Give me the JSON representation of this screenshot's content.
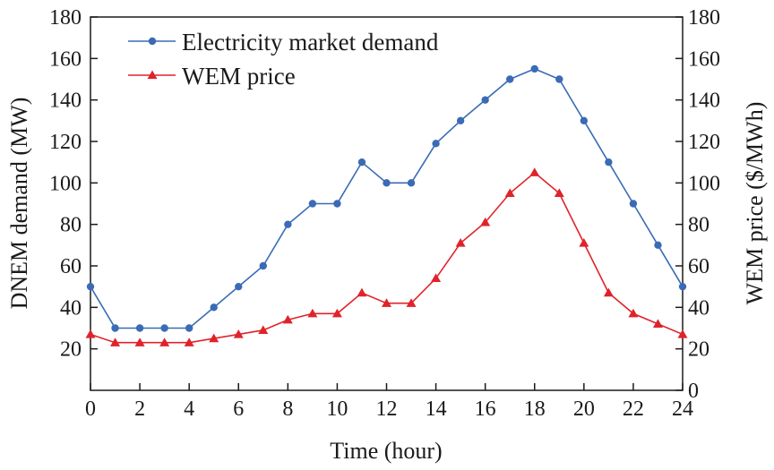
{
  "chart_data": {
    "type": "line",
    "xlabel": "Time (hour)",
    "ylabel_left": "DNEM demand (MW)",
    "ylabel_right": "WEM price ($/MWh)",
    "x_ticks": [
      0,
      2,
      4,
      6,
      8,
      10,
      12,
      14,
      16,
      18,
      20,
      22,
      24
    ],
    "xlim": [
      0,
      24
    ],
    "y_left_ticks": [
      20,
      40,
      60,
      80,
      100,
      120,
      140,
      160,
      180
    ],
    "y_right_ticks": [
      0,
      20,
      40,
      60,
      80,
      100,
      120,
      140,
      160,
      180
    ],
    "ylim": [
      0,
      180
    ],
    "grid": false,
    "legend_position": "top-left",
    "x": [
      0,
      1,
      2,
      3,
      4,
      5,
      6,
      7,
      8,
      9,
      10,
      11,
      12,
      13,
      14,
      15,
      16,
      17,
      18,
      19,
      20,
      21,
      22,
      23,
      24
    ],
    "series": [
      {
        "name": "Electricity market demand",
        "axis": "left",
        "marker": "circle",
        "color": "#3a6bb5",
        "values": [
          50,
          30,
          30,
          30,
          30,
          40,
          50,
          60,
          80,
          90,
          90,
          110,
          100,
          100,
          119,
          130,
          140,
          150,
          155,
          150,
          130,
          110,
          90,
          70,
          50
        ]
      },
      {
        "name": "WEM price",
        "axis": "right",
        "marker": "triangle",
        "color": "#e0232a",
        "values": [
          27,
          23,
          23,
          23,
          23,
          25,
          27,
          29,
          34,
          37,
          37,
          47,
          42,
          42,
          54,
          71,
          81,
          95,
          105,
          95,
          71,
          47,
          37,
          32,
          27
        ]
      }
    ]
  }
}
